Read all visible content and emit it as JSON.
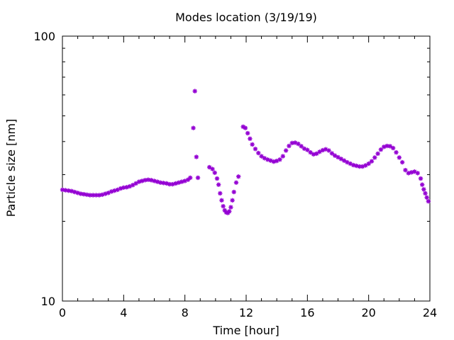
{
  "chart_data": {
    "type": "scatter",
    "title": "Modes location (3/19/19)",
    "xlabel": "Time [hour]",
    "ylabel": "Particle size [nm]",
    "xlim": [
      0,
      24
    ],
    "ylim": [
      10,
      100
    ],
    "yscale": "log",
    "grid": false,
    "x_ticks": [
      {
        "value": 0,
        "label": "0"
      },
      {
        "value": 4,
        "label": "4"
      },
      {
        "value": 8,
        "label": "8"
      },
      {
        "value": 12,
        "label": "12"
      },
      {
        "value": 16,
        "label": "16"
      },
      {
        "value": 20,
        "label": "20"
      },
      {
        "value": 24,
        "label": "24"
      }
    ],
    "y_ticks": [
      {
        "value": 10,
        "label": "10"
      },
      {
        "value": 100,
        "label": "100"
      }
    ],
    "marker_color": "#9400d3",
    "marker": "star",
    "series": [
      {
        "points": [
          [
            0.0,
            26.3
          ],
          [
            0.2,
            26.2
          ],
          [
            0.4,
            26.1
          ],
          [
            0.6,
            26.0
          ],
          [
            0.8,
            25.8
          ],
          [
            1.0,
            25.6
          ],
          [
            1.2,
            25.4
          ],
          [
            1.4,
            25.3
          ],
          [
            1.6,
            25.2
          ],
          [
            1.8,
            25.1
          ],
          [
            2.0,
            25.1
          ],
          [
            2.2,
            25.1
          ],
          [
            2.4,
            25.1
          ],
          [
            2.6,
            25.2
          ],
          [
            2.8,
            25.4
          ],
          [
            3.0,
            25.6
          ],
          [
            3.2,
            25.9
          ],
          [
            3.4,
            26.1
          ],
          [
            3.6,
            26.3
          ],
          [
            3.8,
            26.6
          ],
          [
            4.0,
            26.8
          ],
          [
            4.2,
            26.9
          ],
          [
            4.4,
            27.1
          ],
          [
            4.6,
            27.4
          ],
          [
            4.8,
            27.8
          ],
          [
            5.0,
            28.2
          ],
          [
            5.2,
            28.4
          ],
          [
            5.4,
            28.6
          ],
          [
            5.6,
            28.7
          ],
          [
            5.8,
            28.6
          ],
          [
            6.0,
            28.4
          ],
          [
            6.2,
            28.2
          ],
          [
            6.4,
            28.0
          ],
          [
            6.6,
            27.9
          ],
          [
            6.8,
            27.8
          ],
          [
            7.0,
            27.6
          ],
          [
            7.2,
            27.6
          ],
          [
            7.4,
            27.8
          ],
          [
            7.6,
            28.0
          ],
          [
            7.8,
            28.2
          ],
          [
            8.0,
            28.4
          ],
          [
            8.2,
            28.7
          ],
          [
            8.35,
            29.2
          ],
          [
            8.55,
            45.0
          ],
          [
            8.65,
            62.0
          ],
          [
            8.75,
            35.0
          ],
          [
            8.85,
            29.2
          ],
          [
            9.6,
            32.0
          ],
          [
            9.8,
            31.5
          ],
          [
            9.95,
            30.5
          ],
          [
            10.1,
            29.0
          ],
          [
            10.2,
            27.5
          ],
          [
            10.3,
            25.5
          ],
          [
            10.4,
            24.0
          ],
          [
            10.5,
            22.8
          ],
          [
            10.6,
            22.0
          ],
          [
            10.7,
            21.6
          ],
          [
            10.8,
            21.5
          ],
          [
            10.9,
            21.8
          ],
          [
            11.0,
            22.6
          ],
          [
            11.1,
            24.0
          ],
          [
            11.2,
            25.8
          ],
          [
            11.35,
            28.0
          ],
          [
            11.5,
            29.5
          ],
          [
            11.8,
            45.5
          ],
          [
            11.95,
            45.0
          ],
          [
            12.1,
            43.0
          ],
          [
            12.25,
            41.0
          ],
          [
            12.4,
            39.0
          ],
          [
            12.6,
            37.5
          ],
          [
            12.8,
            36.2
          ],
          [
            13.0,
            35.2
          ],
          [
            13.2,
            34.6
          ],
          [
            13.4,
            34.2
          ],
          [
            13.6,
            33.9
          ],
          [
            13.8,
            33.6
          ],
          [
            14.0,
            33.8
          ],
          [
            14.2,
            34.2
          ],
          [
            14.4,
            35.2
          ],
          [
            14.6,
            37.0
          ],
          [
            14.8,
            38.5
          ],
          [
            15.0,
            39.5
          ],
          [
            15.2,
            39.6
          ],
          [
            15.4,
            39.2
          ],
          [
            15.6,
            38.4
          ],
          [
            15.8,
            37.6
          ],
          [
            16.0,
            37.2
          ],
          [
            16.2,
            36.4
          ],
          [
            16.4,
            35.8
          ],
          [
            16.6,
            36.0
          ],
          [
            16.8,
            36.6
          ],
          [
            17.0,
            37.1
          ],
          [
            17.2,
            37.4
          ],
          [
            17.4,
            37.0
          ],
          [
            17.6,
            36.1
          ],
          [
            17.8,
            35.4
          ],
          [
            18.0,
            34.9
          ],
          [
            18.2,
            34.4
          ],
          [
            18.4,
            33.9
          ],
          [
            18.6,
            33.4
          ],
          [
            18.8,
            33.0
          ],
          [
            19.0,
            32.6
          ],
          [
            19.2,
            32.4
          ],
          [
            19.4,
            32.2
          ],
          [
            19.6,
            32.2
          ],
          [
            19.8,
            32.5
          ],
          [
            20.0,
            33.0
          ],
          [
            20.2,
            33.7
          ],
          [
            20.4,
            34.8
          ],
          [
            20.6,
            36.0
          ],
          [
            20.8,
            37.3
          ],
          [
            21.0,
            38.2
          ],
          [
            21.2,
            38.5
          ],
          [
            21.4,
            38.4
          ],
          [
            21.6,
            37.8
          ],
          [
            21.8,
            36.4
          ],
          [
            22.0,
            34.8
          ],
          [
            22.2,
            33.4
          ],
          [
            22.4,
            31.2
          ],
          [
            22.6,
            30.4
          ],
          [
            22.8,
            30.6
          ],
          [
            23.0,
            30.8
          ],
          [
            23.2,
            30.4
          ],
          [
            23.4,
            29.0
          ],
          [
            23.5,
            27.5
          ],
          [
            23.6,
            26.4
          ],
          [
            23.7,
            25.5
          ],
          [
            23.8,
            24.6
          ],
          [
            23.9,
            23.8
          ]
        ]
      }
    ]
  }
}
